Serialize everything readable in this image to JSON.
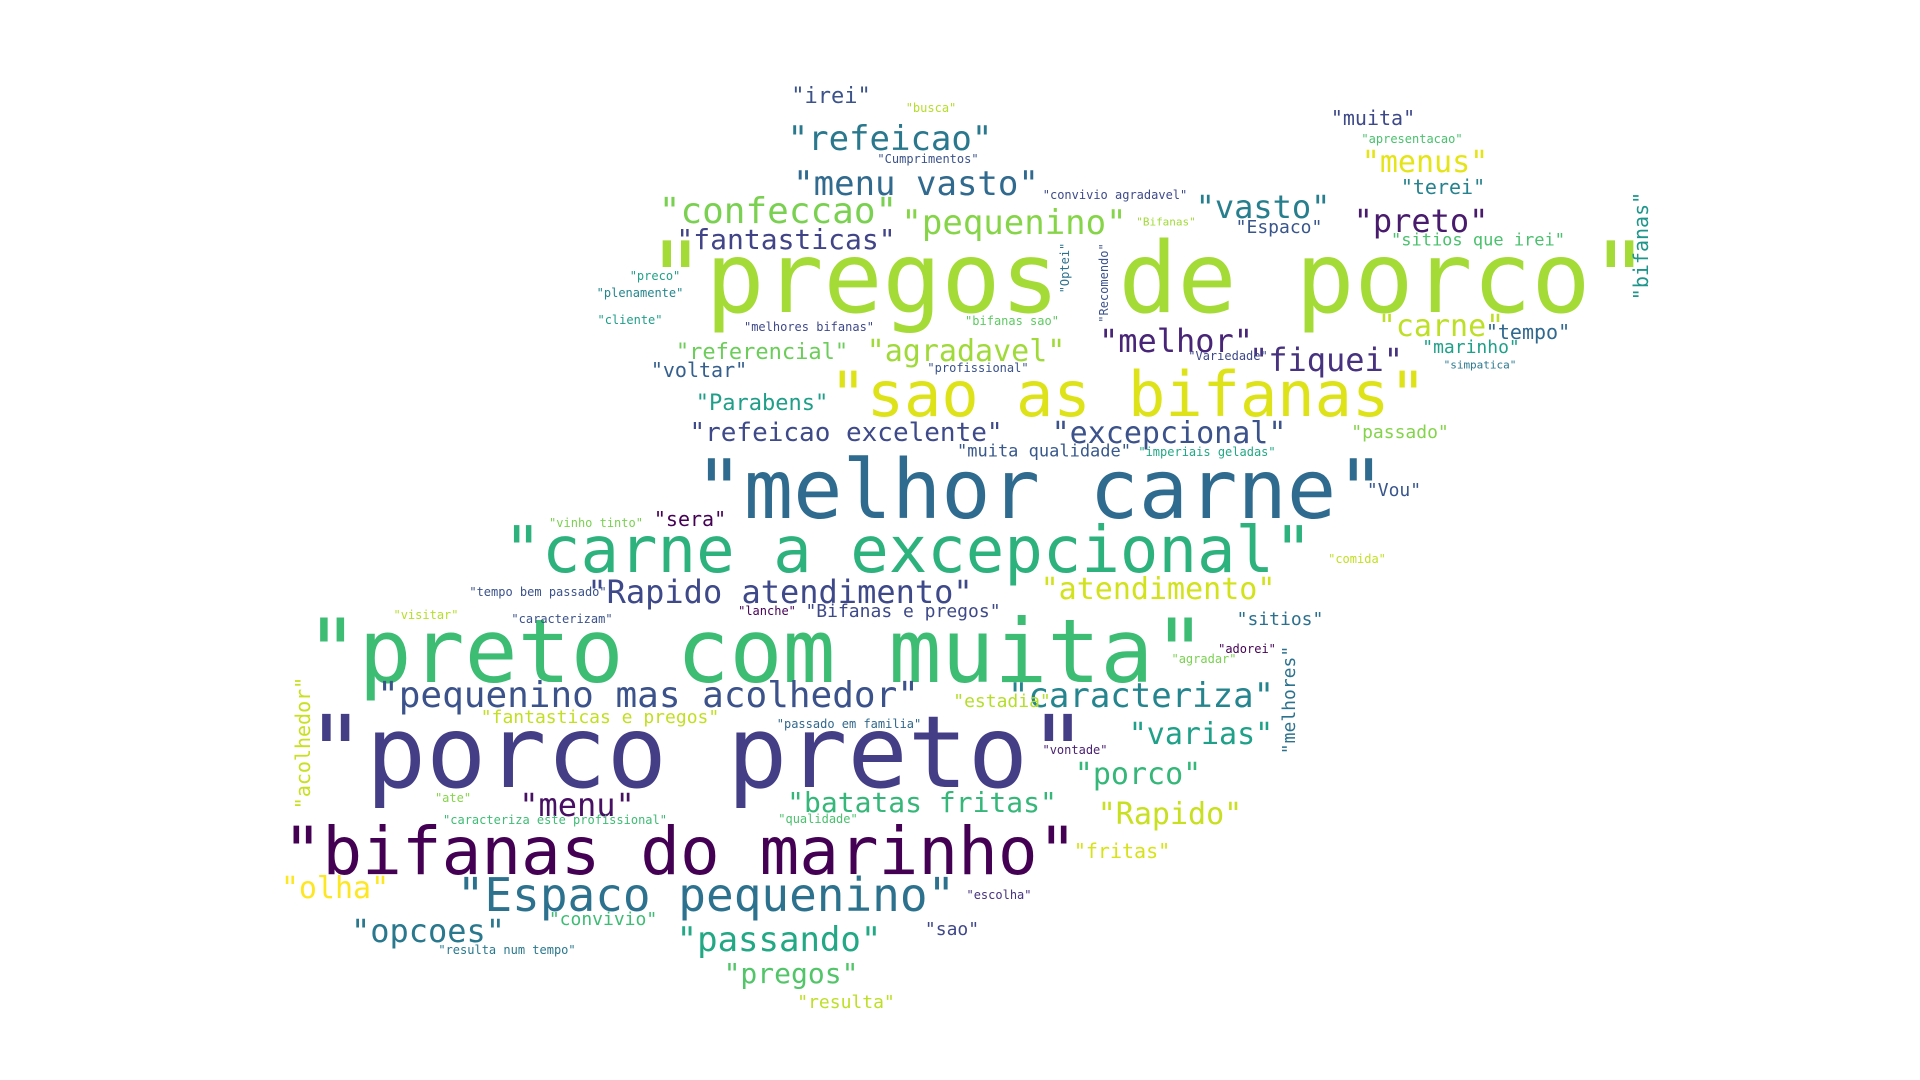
{
  "words": [
    {
      "text": "\"pregos de porco\"",
      "color": "#a5db36"
    },
    {
      "text": "\"porco preto\"",
      "color": "#433e85"
    },
    {
      "text": "\"preto com muita\"",
      "color": "#3dbc74"
    },
    {
      "text": "\"melhor carne\"",
      "color": "#2f6b8e"
    },
    {
      "text": "\"bifanas do marinho\"",
      "color": "#440154"
    },
    {
      "text": "\"carne a excepcional\"",
      "color": "#2db27d"
    },
    {
      "text": "\"sao as bifanas\"",
      "color": "#dde318"
    },
    {
      "text": "\"Espaco pequenino\"",
      "color": "#2c728e"
    },
    {
      "text": "\"pequenino mas acolhedor\"",
      "color": "#3b528b"
    },
    {
      "text": "\"caracteriza\"",
      "color": "#25858e"
    },
    {
      "text": "\"Rapido atendimento\"",
      "color": "#3e4989"
    },
    {
      "text": "\"atendimento\"",
      "color": "#d2e21b"
    },
    {
      "text": "\"confeccao\"",
      "color": "#7ad151"
    },
    {
      "text": "\"pequenino\"",
      "color": "#86d549"
    },
    {
      "text": "\"menu vasto\"",
      "color": "#306a8e"
    },
    {
      "text": "\"refeicao\"",
      "color": "#2a788e"
    },
    {
      "text": "\"vasto\"",
      "color": "#277f8e"
    },
    {
      "text": "\"preto\"",
      "color": "#481b6d"
    },
    {
      "text": "\"fantasticas\"",
      "color": "#414487"
    },
    {
      "text": "\"agradavel\"",
      "color": "#a0da39"
    },
    {
      "text": "\"melhor\"",
      "color": "#482576"
    },
    {
      "text": "\"fiquei\"",
      "color": "#46327e"
    },
    {
      "text": "\"carne\"",
      "color": "#bddf26"
    },
    {
      "text": "\"excepcional\"",
      "color": "#3b528b"
    },
    {
      "text": "\"refeicao excelente\"",
      "color": "#3e4a89"
    },
    {
      "text": "\"batatas fritas\"",
      "color": "#35b779"
    },
    {
      "text": "\"varias\"",
      "color": "#1fa088"
    },
    {
      "text": "\"porco\"",
      "color": "#35b779"
    },
    {
      "text": "\"Rapido\"",
      "color": "#c8e020"
    },
    {
      "text": "\"menu\"",
      "color": "#471063"
    },
    {
      "text": "\"passando\"",
      "color": "#22a884"
    },
    {
      "text": "\"opcoes\"",
      "color": "#2a788e"
    },
    {
      "text": "\"pregos\"",
      "color": "#52c569"
    },
    {
      "text": "\"olha\"",
      "color": "#fde725"
    },
    {
      "text": "\"menus\"",
      "color": "#e5e419"
    },
    {
      "text": "\"muita\"",
      "color": "#3e4989"
    },
    {
      "text": "\"irei\"",
      "color": "#3b528b"
    },
    {
      "text": "\"terei\"",
      "color": "#26828e"
    },
    {
      "text": "\"tempo\"",
      "color": "#31688e"
    },
    {
      "text": "\"marinho\"",
      "color": "#1fa088"
    },
    {
      "text": "\"referencial\"",
      "color": "#6ccd5a"
    },
    {
      "text": "\"voltar\"",
      "color": "#355f8d"
    },
    {
      "text": "\"Parabens\"",
      "color": "#1f9e89"
    },
    {
      "text": "\"passado\"",
      "color": "#84d44b"
    },
    {
      "text": "\"Vou\"",
      "color": "#39568c"
    },
    {
      "text": "\"sera\"",
      "color": "#440154"
    },
    {
      "text": "\"sitios\"",
      "color": "#2d708e"
    },
    {
      "text": "\"estadia\"",
      "color": "#b5de2b"
    },
    {
      "text": "\"fantasticas e pregos\"",
      "color": "#c2df23"
    },
    {
      "text": "\"Bifanas e pregos\"",
      "color": "#3e4989"
    },
    {
      "text": "\"fritas\"",
      "color": "#d8e219"
    },
    {
      "text": "\"convivio\"",
      "color": "#3dbc74"
    },
    {
      "text": "\"sao\"",
      "color": "#3f4788"
    },
    {
      "text": "\"resulta\"",
      "color": "#bddf26"
    },
    {
      "text": "\"Espaco\"",
      "color": "#39568c"
    },
    {
      "text": "\"sitios que irei\"",
      "color": "#4ac16d"
    },
    {
      "text": "\"muita qualidade\"",
      "color": "#38588c"
    },
    {
      "text": "\"bifanas\"",
      "color": "#1f968b",
      "vertical": true
    },
    {
      "text": "\"acolhedor\"",
      "color": "#c8e020",
      "vertical": true
    },
    {
      "text": "\"melhores\"",
      "color": "#2c728e",
      "vertical": true
    },
    {
      "text": "\"Cumprimentos\"",
      "color": "#3b528b"
    },
    {
      "text": "\"busca\"",
      "color": "#b5de2b"
    },
    {
      "text": "\"apresentacao\"",
      "color": "#4ac16d"
    },
    {
      "text": "\"convivio agradavel\"",
      "color": "#3e4a89"
    },
    {
      "text": "\"Bifanas\"",
      "color": "#a0da39"
    },
    {
      "text": "\"preco\"",
      "color": "#20a386"
    },
    {
      "text": "\"plenamente\"",
      "color": "#24868e"
    },
    {
      "text": "\"cliente\"",
      "color": "#1f9e89"
    },
    {
      "text": "\"melhores bifanas\"",
      "color": "#3e4989"
    },
    {
      "text": "\"bifanas sao\"",
      "color": "#5ec962"
    },
    {
      "text": "\"Variedade\"",
      "color": "#3e4989"
    },
    {
      "text": "\"profissional\"",
      "color": "#3b528b"
    },
    {
      "text": "\"simpatica\"",
      "color": "#2a788e"
    },
    {
      "text": "\"Optei\"",
      "color": "#2c728e",
      "vertical": true
    },
    {
      "text": "\"Recomendo\"",
      "color": "#3b528b",
      "vertical": true
    },
    {
      "text": "\"imperiais geladas\"",
      "color": "#22a884"
    },
    {
      "text": "\"vinho tinto\"",
      "color": "#7ad151"
    },
    {
      "text": "\"comida\"",
      "color": "#c2df23"
    },
    {
      "text": "\"tempo bem passado\"",
      "color": "#3b528b"
    },
    {
      "text": "\"visitar\"",
      "color": "#b5de2b"
    },
    {
      "text": "\"caracterizam\"",
      "color": "#3b528b"
    },
    {
      "text": "\"lanche\"",
      "color": "#440154"
    },
    {
      "text": "\"adorei\"",
      "color": "#440154"
    },
    {
      "text": "\"agradar\"",
      "color": "#7ad151"
    },
    {
      "text": "\"passado em familia\"",
      "color": "#31688e"
    },
    {
      "text": "\"vontade\"",
      "color": "#481f70"
    },
    {
      "text": "\"ate\"",
      "color": "#86d549"
    },
    {
      "text": "\"caracteriza este profissional\"",
      "color": "#3dbc74"
    },
    {
      "text": "\"qualidade\"",
      "color": "#4ac16d"
    },
    {
      "text": "\"escolha\"",
      "color": "#46327e"
    },
    {
      "text": "\"resulta num tempo\"",
      "color": "#2a788e"
    }
  ]
}
